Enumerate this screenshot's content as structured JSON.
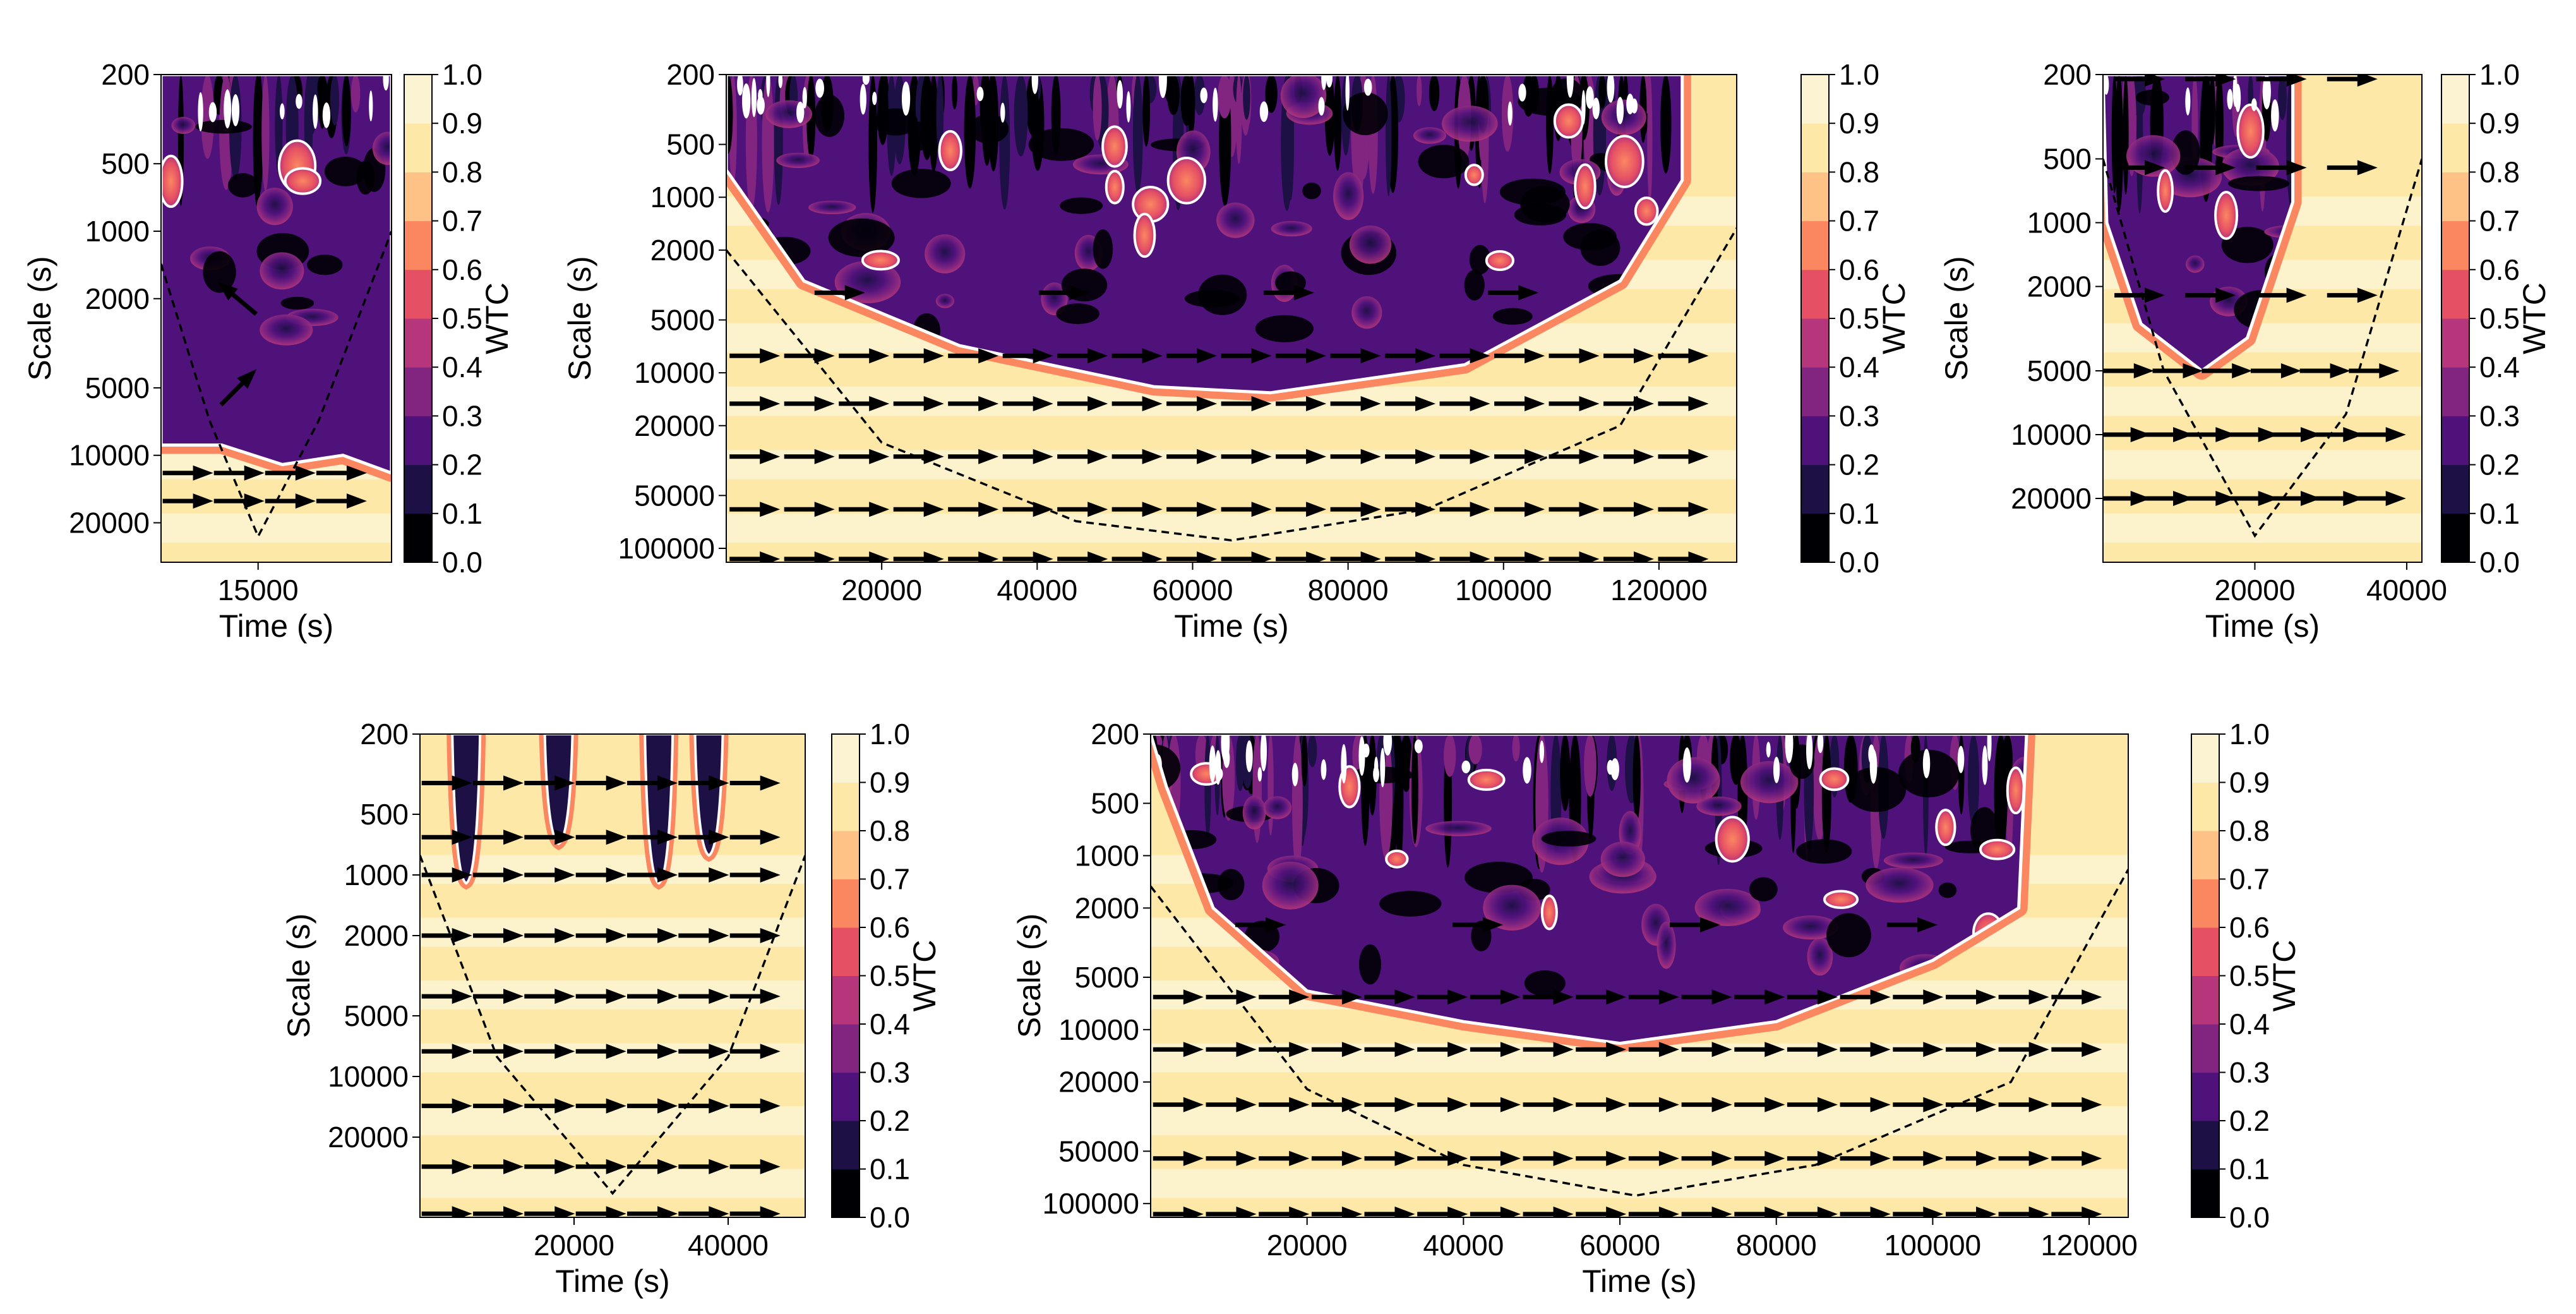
{
  "figure": {
    "colormap": [
      "#000004",
      "#1c1044",
      "#4f127b",
      "#812581",
      "#b5367a",
      "#e55064",
      "#fb8761",
      "#fec287",
      "#fde8a8",
      "#fcf3d2"
    ]
  },
  "chart_data": [
    {
      "type": "heatmap",
      "panel": "top-left",
      "xlabel": "Time (s)",
      "ylabel": "Scale (s)",
      "colorbar_label": "WTC",
      "xlim": [
        11000,
        20500
      ],
      "ylim": [
        200,
        30000
      ],
      "yscale": "log",
      "xticks": [
        15000
      ],
      "xtick_labels": [
        "15000"
      ],
      "yticks": [
        200,
        500,
        1000,
        2000,
        5000,
        10000,
        20000
      ],
      "ytick_labels": [
        "200",
        "500",
        "1000",
        "2000",
        "5000",
        "10000",
        "20000"
      ],
      "colorbar_ticks": [
        "0.0",
        "0.1",
        "0.2",
        "0.3",
        "0.4",
        "0.5",
        "0.6",
        "0.7",
        "0.8",
        "0.9",
        "1.0"
      ],
      "coi_points": [
        [
          11000,
          1400
        ],
        [
          13000,
          7000
        ],
        [
          15000,
          23000
        ],
        [
          17500,
          7000
        ],
        [
          20500,
          1000
        ]
      ],
      "low_coherence_boundary": [
        [
          11000,
          9000
        ],
        [
          13500,
          9000
        ],
        [
          16000,
          11000
        ],
        [
          18500,
          10000
        ],
        [
          20500,
          12000
        ]
      ],
      "arrow_rows": [
        {
          "scale": 12000,
          "angle": 0,
          "count": 4
        },
        {
          "scale": 16000,
          "angle": 0,
          "count": 4
        },
        {
          "scale": 2000,
          "angle": 140,
          "count": 1
        },
        {
          "scale": 5000,
          "angle": 45,
          "count": 1
        }
      ]
    },
    {
      "type": "heatmap",
      "panel": "top-middle",
      "xlabel": "Time (s)",
      "ylabel": "Scale (s)",
      "colorbar_label": "WTC",
      "xlim": [
        0,
        130000
      ],
      "ylim": [
        200,
        120000
      ],
      "yscale": "log",
      "xticks": [
        20000,
        40000,
        60000,
        80000,
        100000,
        120000
      ],
      "xtick_labels": [
        "20000",
        "40000",
        "60000",
        "80000",
        "100000",
        "120000"
      ],
      "yticks": [
        200,
        500,
        1000,
        2000,
        5000,
        10000,
        20000,
        50000,
        100000
      ],
      "ytick_labels": [
        "200",
        "500",
        "1000",
        "2000",
        "5000",
        "10000",
        "20000",
        "50000",
        "100000"
      ],
      "colorbar_ticks": [
        "0.0",
        "0.1",
        "0.2",
        "0.3",
        "0.4",
        "0.5",
        "0.6",
        "0.7",
        "0.8",
        "0.9",
        "1.0"
      ],
      "coi_points": [
        [
          0,
          2000
        ],
        [
          20000,
          25000
        ],
        [
          45000,
          70000
        ],
        [
          65000,
          90000
        ],
        [
          90000,
          60000
        ],
        [
          115000,
          20000
        ],
        [
          130000,
          1500
        ]
      ],
      "low_coherence_boundary": [
        [
          0,
          700
        ],
        [
          10000,
          3000
        ],
        [
          30000,
          7000
        ],
        [
          55000,
          12000
        ],
        [
          70000,
          13000
        ],
        [
          95000,
          9000
        ],
        [
          115000,
          3000
        ],
        [
          123000,
          800
        ],
        [
          123000,
          200
        ]
      ],
      "arrow_rows": [
        {
          "scale": 3500,
          "angle": 0,
          "count": 4
        },
        {
          "scale": 8000,
          "angle": 0,
          "count": 18
        },
        {
          "scale": 15000,
          "angle": 0,
          "count": 18
        },
        {
          "scale": 30000,
          "angle": 0,
          "count": 18
        },
        {
          "scale": 60000,
          "angle": 0,
          "count": 18
        },
        {
          "scale": 115000,
          "angle": 0,
          "count": 18
        }
      ]
    },
    {
      "type": "heatmap",
      "panel": "top-right",
      "xlabel": "Time (s)",
      "ylabel": "Scale (s)",
      "colorbar_label": "WTC",
      "xlim": [
        0,
        42000
      ],
      "ylim": [
        200,
        40000
      ],
      "yscale": "log",
      "xticks": [
        20000,
        40000
      ],
      "xtick_labels": [
        "20000",
        "40000"
      ],
      "yticks": [
        200,
        500,
        1000,
        2000,
        5000,
        10000,
        20000
      ],
      "ytick_labels": [
        "200",
        "500",
        "1000",
        "2000",
        "5000",
        "10000",
        "20000"
      ],
      "colorbar_ticks": [
        "0.0",
        "0.1",
        "0.2",
        "0.3",
        "0.4",
        "0.5",
        "0.6",
        "0.7",
        "0.8",
        "0.9",
        "1.0"
      ],
      "coi_points": [
        [
          0,
          500
        ],
        [
          8000,
          5000
        ],
        [
          20000,
          30000
        ],
        [
          32000,
          8000
        ],
        [
          42000,
          500
        ]
      ],
      "low_coherence_boundary": [
        [
          500,
          1000
        ],
        [
          5000,
          3000
        ],
        [
          13000,
          5000
        ],
        [
          19000,
          3500
        ],
        [
          25000,
          800
        ],
        [
          25000,
          200
        ]
      ],
      "arrow_rows": [
        {
          "scale": 210,
          "angle": 0,
          "count": 4
        },
        {
          "scale": 550,
          "angle": 0,
          "count": 4
        },
        {
          "scale": 2200,
          "angle": 0,
          "count": 4
        },
        {
          "scale": 5000,
          "angle": 0,
          "count": 6
        },
        {
          "scale": 10000,
          "angle": 0,
          "count": 7
        },
        {
          "scale": 20000,
          "angle": 0,
          "count": 7
        }
      ]
    },
    {
      "type": "heatmap",
      "panel": "bottom-left",
      "xlabel": "Time (s)",
      "ylabel": "Scale (s)",
      "colorbar_label": "WTC",
      "xlim": [
        0,
        50000
      ],
      "ylim": [
        200,
        50000
      ],
      "yscale": "log",
      "xticks": [
        20000,
        40000
      ],
      "xtick_labels": [
        "20000",
        "40000"
      ],
      "yticks": [
        200,
        500,
        1000,
        2000,
        5000,
        10000,
        20000
      ],
      "ytick_labels": [
        "200",
        "500",
        "1000",
        "2000",
        "5000",
        "10000",
        "20000"
      ],
      "colorbar_ticks": [
        "0.0",
        "0.1",
        "0.2",
        "0.3",
        "0.4",
        "0.5",
        "0.6",
        "0.7",
        "0.8",
        "0.9",
        "1.0"
      ],
      "coi_points": [
        [
          0,
          800
        ],
        [
          10000,
          8000
        ],
        [
          25000,
          38000
        ],
        [
          40000,
          8000
        ],
        [
          50000,
          800
        ]
      ],
      "arrow_rows": [
        {
          "scale": 350,
          "angle": 0,
          "count": 7
        },
        {
          "scale": 650,
          "angle": 0,
          "count": 7
        },
        {
          "scale": 1000,
          "angle": 0,
          "count": 7
        },
        {
          "scale": 2000,
          "angle": 0,
          "count": 7
        },
        {
          "scale": 4000,
          "angle": 0,
          "count": 7
        },
        {
          "scale": 7500,
          "angle": 0,
          "count": 7
        },
        {
          "scale": 14000,
          "angle": 0,
          "count": 7
        },
        {
          "scale": 28000,
          "angle": 0,
          "count": 7
        },
        {
          "scale": 48000,
          "angle": 0,
          "count": 7
        }
      ]
    },
    {
      "type": "heatmap",
      "panel": "bottom-right",
      "xlabel": "Time (s)",
      "ylabel": "Scale (s)",
      "colorbar_label": "WTC",
      "xlim": [
        0,
        125000
      ],
      "ylim": [
        200,
        120000
      ],
      "yscale": "log",
      "xticks": [
        20000,
        40000,
        60000,
        80000,
        100000,
        120000
      ],
      "xtick_labels": [
        "20000",
        "40000",
        "60000",
        "80000",
        "100000",
        "120000"
      ],
      "yticks": [
        200,
        500,
        1000,
        2000,
        5000,
        10000,
        20000,
        50000,
        100000
      ],
      "ytick_labels": [
        "200",
        "500",
        "1000",
        "2000",
        "5000",
        "10000",
        "20000",
        "50000",
        "100000"
      ],
      "colorbar_ticks": [
        "0.0",
        "0.1",
        "0.2",
        "0.3",
        "0.4",
        "0.5",
        "0.6",
        "0.7",
        "0.8",
        "0.9",
        "1.0"
      ],
      "coi_points": [
        [
          0,
          1500
        ],
        [
          20000,
          22000
        ],
        [
          40000,
          60000
        ],
        [
          62000,
          90000
        ],
        [
          85000,
          60000
        ],
        [
          110000,
          20000
        ],
        [
          125000,
          1200
        ]
      ],
      "low_coherence_boundary": [
        [
          2000,
          400
        ],
        [
          8000,
          2000
        ],
        [
          20000,
          6000
        ],
        [
          40000,
          9000
        ],
        [
          60000,
          12000
        ],
        [
          80000,
          9000
        ],
        [
          100000,
          4000
        ],
        [
          111000,
          2000
        ],
        [
          112000,
          200
        ]
      ],
      "arrow_rows": [
        {
          "scale": 2500,
          "angle": 0,
          "count": 4
        },
        {
          "scale": 6500,
          "angle": 0,
          "count": 18
        },
        {
          "scale": 13000,
          "angle": 0,
          "count": 18
        },
        {
          "scale": 27000,
          "angle": 0,
          "count": 18
        },
        {
          "scale": 55000,
          "angle": 0,
          "count": 18
        },
        {
          "scale": 115000,
          "angle": 0,
          "count": 18
        }
      ]
    }
  ]
}
